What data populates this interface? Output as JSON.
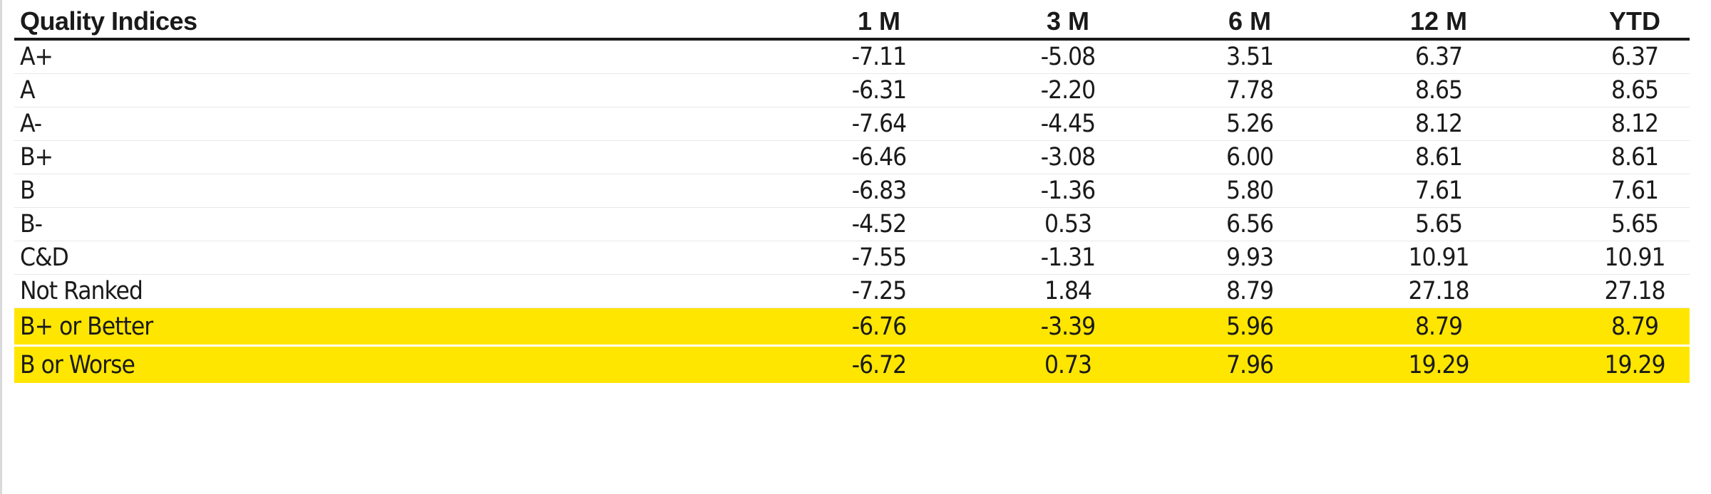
{
  "table": {
    "headers": [
      "Quality Indices",
      "1 M",
      "3 M",
      "6 M",
      "12 M",
      "YTD"
    ],
    "rows": [
      {
        "label": "A+",
        "values": [
          "-7.11",
          "-5.08",
          "3.51",
          "6.37",
          "6.37"
        ],
        "highlight": false
      },
      {
        "label": "A",
        "values": [
          "-6.31",
          "-2.20",
          "7.78",
          "8.65",
          "8.65"
        ],
        "highlight": false
      },
      {
        "label": "A-",
        "values": [
          "-7.64",
          "-4.45",
          "5.26",
          "8.12",
          "8.12"
        ],
        "highlight": false
      },
      {
        "label": "B+",
        "values": [
          "-6.46",
          "-3.08",
          "6.00",
          "8.61",
          "8.61"
        ],
        "highlight": false
      },
      {
        "label": "B",
        "values": [
          "-6.83",
          "-1.36",
          "5.80",
          "7.61",
          "7.61"
        ],
        "highlight": false
      },
      {
        "label": "B-",
        "values": [
          "-4.52",
          "0.53",
          "6.56",
          "5.65",
          "5.65"
        ],
        "highlight": false
      },
      {
        "label": "C&D",
        "values": [
          "-7.55",
          "-1.31",
          "9.93",
          "10.91",
          "10.91"
        ],
        "highlight": false
      },
      {
        "label": "Not Ranked",
        "values": [
          "-7.25",
          "1.84",
          "8.79",
          "27.18",
          "27.18"
        ],
        "highlight": false
      },
      {
        "label": "B+ or Better",
        "values": [
          "-6.76",
          "-3.39",
          "5.96",
          "8.79",
          "8.79"
        ],
        "highlight": true
      },
      {
        "label": "B or Worse",
        "values": [
          "-6.72",
          "0.73",
          "7.96",
          "19.29",
          "19.29"
        ],
        "highlight": true
      }
    ]
  },
  "colors": {
    "highlight": "#ffe600",
    "text": "#1a1a1a",
    "header_rule": "#1a1a1a"
  }
}
